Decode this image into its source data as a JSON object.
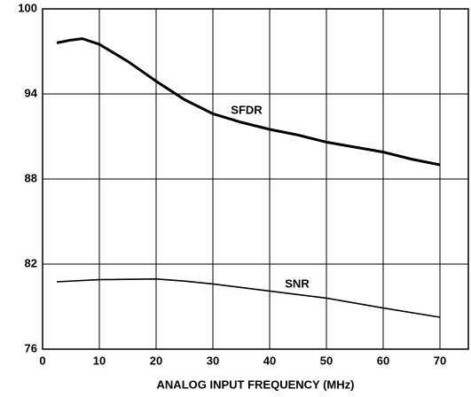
{
  "chart_data": {
    "type": "line",
    "x_label": "ANALOG INPUT FREQUENCY (MHz)",
    "xlim": [
      0,
      75
    ],
    "xticks": [
      0,
      10,
      20,
      30,
      40,
      50,
      60,
      70
    ],
    "ylim": [
      76,
      100
    ],
    "yticks": [
      76,
      82,
      88,
      94,
      100
    ],
    "grid": true,
    "series": [
      {
        "name": "SFDR",
        "color": "#000000",
        "x": [
          2.5,
          5,
          7,
          10,
          15,
          20,
          25,
          30,
          35,
          40,
          45,
          50,
          55,
          60,
          65,
          70
        ],
        "values": [
          97.6,
          97.8,
          97.9,
          97.5,
          96.3,
          94.9,
          93.6,
          92.6,
          92.0,
          91.5,
          91.1,
          90.6,
          90.25,
          89.9,
          89.4,
          89.0
        ]
      },
      {
        "name": "SNR",
        "color": "#000000",
        "x": [
          2.5,
          10,
          20,
          25,
          30,
          40,
          50,
          60,
          70
        ],
        "values": [
          80.75,
          80.9,
          80.95,
          80.8,
          80.6,
          80.1,
          79.6,
          78.9,
          78.25
        ]
      }
    ]
  }
}
